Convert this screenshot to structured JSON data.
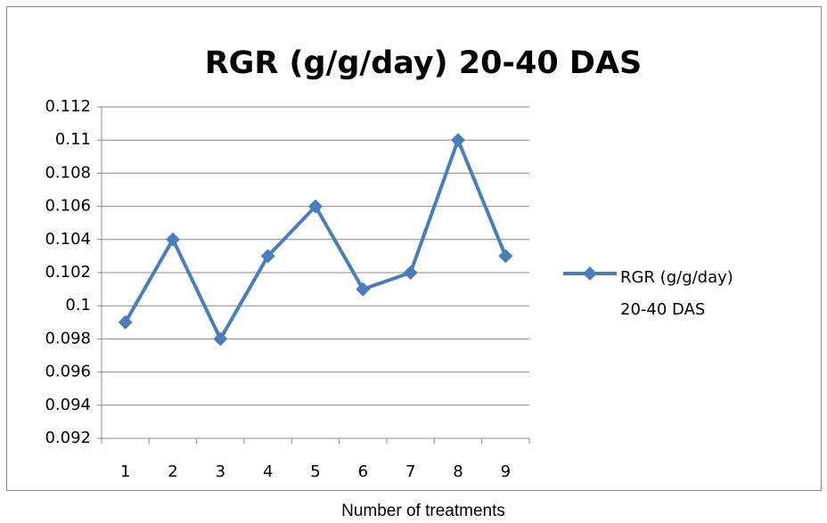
{
  "chart_data": {
    "type": "line",
    "title": "RGR (g/g/day) 20-40 DAS",
    "x_label": "Number of treatments",
    "categories": [
      "1",
      "2",
      "3",
      "4",
      "5",
      "6",
      "7",
      "8",
      "9"
    ],
    "series": [
      {
        "name": "RGR (g/g/day) 20-40 DAS",
        "color": "#4a7ebb",
        "values": [
          0.099,
          0.104,
          0.098,
          0.103,
          0.106,
          0.101,
          0.102,
          0.11,
          0.103
        ]
      }
    ],
    "ylim": [
      0.092,
      0.112
    ],
    "yticks": [
      0.092,
      0.094,
      0.096,
      0.098,
      0.1,
      0.102,
      0.104,
      0.106,
      0.108,
      0.11,
      0.112
    ],
    "grid": true,
    "legend": "right"
  }
}
